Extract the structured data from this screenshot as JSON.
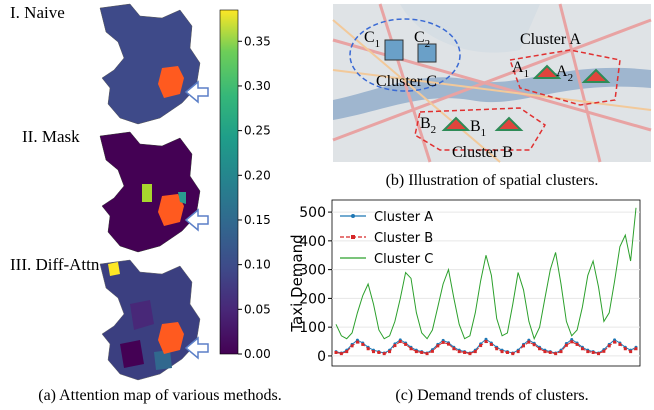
{
  "panels": {
    "maps": [
      "I. Naive",
      "II. Mask",
      "III. Diff-Attn"
    ],
    "captions": [
      "(a) Attention map of various methods.",
      "(b) Illustration of spatial clusters.",
      "(c) Demand trends of clusters."
    ],
    "cluster_labels": [
      "Cluster A",
      "Cluster B",
      "Cluster C"
    ],
    "sites": [
      {
        "letter": "C",
        "sub": "1"
      },
      {
        "letter": "C",
        "sub": "2"
      },
      {
        "letter": "A",
        "sub": "1"
      },
      {
        "letter": "A",
        "sub": "2"
      },
      {
        "letter": "B",
        "sub": "2"
      },
      {
        "letter": "B",
        "sub": "1"
      }
    ]
  },
  "chart_data": [
    {
      "type": "line",
      "ylabel": "Taxi Demand",
      "legend": "upper left",
      "grid": true,
      "categories": [
        null,
        null,
        null,
        null,
        null,
        null,
        null,
        null,
        null,
        null,
        null,
        null,
        null,
        null,
        null,
        null,
        null,
        null,
        null,
        null,
        null,
        null,
        null,
        null,
        null,
        null,
        null,
        null,
        null,
        null,
        null,
        null,
        null,
        null,
        null,
        null,
        null,
        null,
        null,
        null,
        null,
        null,
        null,
        null,
        null,
        null,
        null,
        null,
        null,
        null,
        null,
        null,
        null,
        null,
        null,
        null,
        null
      ],
      "ylim": [
        -35,
        542
      ],
      "yticks": [
        0,
        100,
        200,
        300,
        400,
        500
      ],
      "series": [
        {
          "name": "Cluster A",
          "color": "#1f77b4",
          "marker": "circle",
          "dash": false,
          "values": [
            15,
            10,
            20,
            40,
            55,
            45,
            30,
            20,
            15,
            10,
            20,
            42,
            56,
            45,
            30,
            20,
            15,
            10,
            22,
            40,
            54,
            46,
            30,
            20,
            15,
            10,
            20,
            42,
            58,
            45,
            30,
            20,
            15,
            10,
            20,
            40,
            55,
            44,
            30,
            20,
            15,
            10,
            20,
            43,
            57,
            45,
            30,
            20,
            15,
            10,
            22,
            40,
            56,
            45,
            30,
            20,
            30
          ]
        },
        {
          "name": "Cluster B",
          "color": "#d62728",
          "marker": "square",
          "dash": true,
          "values": [
            12,
            8,
            15,
            35,
            48,
            40,
            25,
            15,
            12,
            8,
            15,
            36,
            50,
            40,
            25,
            15,
            12,
            8,
            16,
            35,
            47,
            41,
            25,
            15,
            12,
            8,
            15,
            36,
            50,
            40,
            25,
            15,
            12,
            8,
            15,
            35,
            48,
            39,
            25,
            15,
            12,
            8,
            15,
            37,
            49,
            40,
            25,
            15,
            12,
            8,
            16,
            35,
            48,
            40,
            25,
            15,
            25
          ]
        },
        {
          "name": "Cluster C",
          "color": "#2ca02c",
          "marker": "none",
          "dash": false,
          "values": [
            110,
            70,
            60,
            80,
            150,
            210,
            250,
            180,
            90,
            60,
            70,
            120,
            200,
            290,
            270,
            150,
            80,
            60,
            90,
            170,
            250,
            300,
            200,
            110,
            60,
            70,
            150,
            260,
            350,
            280,
            130,
            70,
            80,
            180,
            290,
            230,
            120,
            60,
            100,
            200,
            300,
            360,
            250,
            120,
            70,
            90,
            170,
            280,
            330,
            240,
            120,
            150,
            260,
            380,
            420,
            330,
            515
          ]
        }
      ]
    },
    {
      "type": "colorbar",
      "colormap": "viridis",
      "ylim": [
        0,
        0.385
      ],
      "yticks": [
        {
          "value": 0,
          "label": "0.00"
        },
        {
          "value": 0.05,
          "label": "0.05"
        },
        {
          "value": 0.1,
          "label": "0.10"
        },
        {
          "value": 0.15,
          "label": "0.15"
        },
        {
          "value": 0.2,
          "label": "0.20"
        },
        {
          "value": 0.25,
          "label": "0.25"
        },
        {
          "value": 0.3,
          "label": "0.30"
        },
        {
          "value": 0.35,
          "label": "0.35"
        }
      ]
    }
  ]
}
